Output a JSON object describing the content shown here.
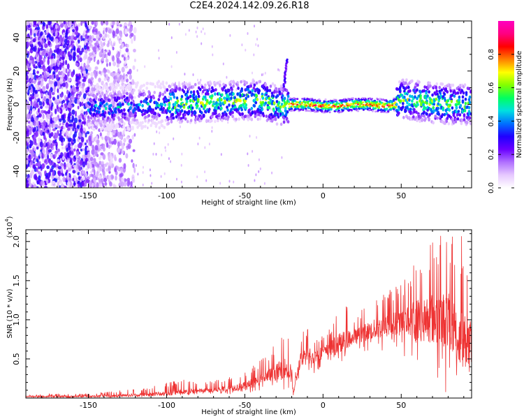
{
  "title": "C2E4.2024.142.09.26.R18",
  "chart_data": [
    {
      "type": "heatmap",
      "xlabel": "Height of straight line (km)",
      "ylabel": "Frequency (Hz)",
      "xlim": [
        -190,
        95
      ],
      "ylim": [
        -50,
        50
      ],
      "xticks": [
        -150,
        -100,
        -50,
        0,
        50
      ],
      "yticks": [
        -40,
        -20,
        0,
        20,
        40
      ],
      "colorbar": {
        "label": "Normalized spectral amplitude",
        "range": [
          0,
          1
        ],
        "ticks": [
          "0.0",
          "0.2",
          "0.4",
          "0.6",
          "0.8"
        ],
        "colors": [
          "#ffffff",
          "#e6c8ff",
          "#b070ff",
          "#6a00ff",
          "#2000ff",
          "#0070ff",
          "#00e0e0",
          "#00ff60",
          "#80ff00",
          "#ffff00",
          "#ff8000",
          "#ff0000",
          "#ff0080",
          "#ff00c0"
        ]
      },
      "ridge": {
        "x": [
          -145,
          -120,
          -100,
          -80,
          -60,
          -40,
          -30,
          -24,
          -20,
          -10,
          0,
          10,
          20,
          30,
          40,
          47,
          50,
          60,
          70,
          80,
          95
        ],
        "frequency": [
          -2,
          -1,
          0,
          1,
          2,
          3,
          0,
          -1,
          0,
          0,
          -1,
          -1,
          0,
          0,
          -1,
          0,
          3,
          2,
          1,
          0,
          0
        ]
      },
      "burst": {
        "x": [
          -25,
          -23
        ],
        "frequency": [
          10,
          27
        ]
      }
    },
    {
      "type": "line",
      "xlabel": "Height of straight line (km)",
      "ylabel": "SNR (10 * v/v)",
      "scale_label": "(x10",
      "scale_exponent": "4",
      "scale_suffix": ")",
      "xlim": [
        -190,
        95
      ],
      "ylim": [
        0,
        2.15
      ],
      "xticks": [
        -150,
        -100,
        -50,
        0,
        50
      ],
      "yticks": [
        "0.5",
        "1.0",
        "1.5",
        "2.0"
      ],
      "yticks_values": [
        0.5,
        1.0,
        1.5,
        2.0
      ],
      "color": "#ee3333",
      "envelope": {
        "x": [
          -190,
          -150,
          -130,
          -115,
          -100,
          -90,
          -80,
          -70,
          -60,
          -50,
          -40,
          -30,
          -25,
          -20,
          -19,
          -15,
          -10,
          -5,
          0,
          5,
          10,
          20,
          30,
          40,
          50,
          60,
          70,
          80,
          90,
          95
        ],
        "base": [
          0.02,
          0.02,
          0.03,
          0.04,
          0.06,
          0.07,
          0.09,
          0.1,
          0.12,
          0.15,
          0.22,
          0.32,
          0.38,
          0.3,
          0.05,
          0.45,
          0.55,
          0.52,
          0.58,
          0.62,
          0.68,
          0.78,
          0.85,
          0.9,
          0.95,
          0.98,
          1.0,
          0.95,
          0.7,
          0.6
        ],
        "peak": [
          0.05,
          0.06,
          0.1,
          0.12,
          0.2,
          0.24,
          0.2,
          0.22,
          0.28,
          0.35,
          0.5,
          0.7,
          0.88,
          0.72,
          0.12,
          0.8,
          0.92,
          0.82,
          0.8,
          0.9,
          1.3,
          1.05,
          1.3,
          1.38,
          1.5,
          1.85,
          2.05,
          2.12,
          2.1,
          1.95
        ],
        "trough": [
          0.0,
          0.0,
          0.0,
          0.01,
          0.02,
          0.03,
          0.04,
          0.04,
          0.05,
          0.06,
          0.08,
          0.12,
          0.1,
          0.05,
          0.0,
          0.2,
          0.35,
          0.3,
          0.35,
          0.4,
          0.45,
          0.55,
          0.6,
          0.55,
          0.5,
          0.3,
          0.1,
          0.05,
          0.05,
          0.05
        ]
      }
    }
  ]
}
